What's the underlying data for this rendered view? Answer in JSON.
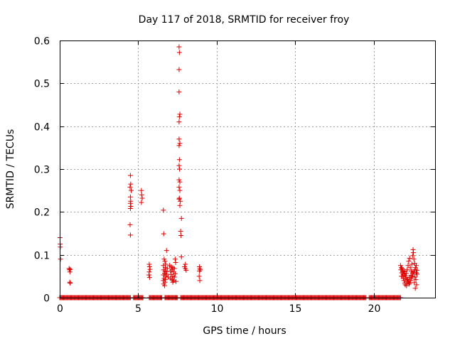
{
  "chart_data": {
    "type": "scatter",
    "title": "Day 117 of 2018, SRMTID for receiver froy",
    "xlabel": "GPS time / hours",
    "ylabel": "SRMTID / TECUs",
    "xlim": [
      0,
      23.9
    ],
    "ylim": [
      0,
      0.6
    ],
    "x_ticks": [
      0,
      5,
      10,
      15,
      20
    ],
    "x_tick_labels": [
      "0",
      "5",
      "10",
      "15",
      "20"
    ],
    "y_ticks": [
      0,
      0.1,
      0.2,
      0.3,
      0.4,
      0.5,
      0.6
    ],
    "y_tick_labels": [
      "0",
      "0.1",
      "0.2",
      "0.3",
      "0.4",
      "0.5",
      "0.6"
    ],
    "grid": true,
    "marker": "+",
    "series": [
      {
        "name": "SRMTID",
        "color": "#dd0000",
        "baseline": {
          "y": 0.0,
          "ranges": [
            [
              0.0,
              4.5
            ],
            [
              4.7,
              5.3
            ],
            [
              5.7,
              6.5
            ],
            [
              6.7,
              7.5
            ],
            [
              7.7,
              19.5
            ],
            [
              19.7,
              21.7
            ]
          ],
          "step": 0.05
        },
        "points": [
          [
            0.02,
            0.14
          ],
          [
            0.03,
            0.125
          ],
          [
            0.04,
            0.118
          ],
          [
            0.05,
            0.09
          ],
          [
            0.6,
            0.068
          ],
          [
            0.62,
            0.065
          ],
          [
            0.65,
            0.06
          ],
          [
            0.68,
            0.066
          ],
          [
            0.64,
            0.036
          ],
          [
            0.67,
            0.034
          ],
          [
            4.5,
            0.285
          ],
          [
            4.52,
            0.265
          ],
          [
            4.48,
            0.258
          ],
          [
            4.55,
            0.25
          ],
          [
            4.5,
            0.235
          ],
          [
            4.52,
            0.225
          ],
          [
            4.5,
            0.22
          ],
          [
            4.53,
            0.213
          ],
          [
            4.5,
            0.208
          ],
          [
            4.48,
            0.17
          ],
          [
            4.5,
            0.146
          ],
          [
            5.2,
            0.25
          ],
          [
            5.22,
            0.24
          ],
          [
            5.25,
            0.232
          ],
          [
            5.2,
            0.222
          ],
          [
            5.7,
            0.078
          ],
          [
            5.72,
            0.072
          ],
          [
            5.75,
            0.066
          ],
          [
            5.7,
            0.06
          ],
          [
            5.68,
            0.053
          ],
          [
            5.72,
            0.047
          ],
          [
            6.6,
            0.204
          ],
          [
            6.62,
            0.149
          ],
          [
            6.8,
            0.11
          ],
          [
            6.65,
            0.09
          ],
          [
            6.7,
            0.085
          ],
          [
            6.75,
            0.078
          ],
          [
            6.6,
            0.075
          ],
          [
            6.72,
            0.07
          ],
          [
            6.85,
            0.068
          ],
          [
            6.62,
            0.065
          ],
          [
            6.7,
            0.062
          ],
          [
            6.78,
            0.06
          ],
          [
            6.68,
            0.057
          ],
          [
            6.8,
            0.055
          ],
          [
            6.6,
            0.053
          ],
          [
            6.75,
            0.05
          ],
          [
            6.9,
            0.048
          ],
          [
            6.65,
            0.045
          ],
          [
            6.72,
            0.042
          ],
          [
            6.6,
            0.04
          ],
          [
            6.7,
            0.036
          ],
          [
            6.62,
            0.032
          ],
          [
            6.68,
            0.028
          ],
          [
            7.0,
            0.075
          ],
          [
            7.1,
            0.072
          ],
          [
            7.2,
            0.07
          ],
          [
            7.3,
            0.068
          ],
          [
            7.15,
            0.065
          ],
          [
            7.05,
            0.062
          ],
          [
            7.25,
            0.06
          ],
          [
            7.35,
            0.056
          ],
          [
            7.1,
            0.054
          ],
          [
            7.2,
            0.05
          ],
          [
            7.3,
            0.048
          ],
          [
            7.05,
            0.045
          ],
          [
            7.15,
            0.042
          ],
          [
            7.25,
            0.04
          ],
          [
            7.4,
            0.038
          ],
          [
            7.35,
            0.09
          ],
          [
            7.38,
            0.082
          ],
          [
            7.2,
            0.036
          ],
          [
            7.6,
            0.585
          ],
          [
            7.62,
            0.572
          ],
          [
            7.6,
            0.532
          ],
          [
            7.6,
            0.48
          ],
          [
            7.65,
            0.428
          ],
          [
            7.62,
            0.422
          ],
          [
            7.6,
            0.41
          ],
          [
            7.6,
            0.37
          ],
          [
            7.65,
            0.36
          ],
          [
            7.6,
            0.355
          ],
          [
            7.62,
            0.322
          ],
          [
            7.6,
            0.308
          ],
          [
            7.63,
            0.3
          ],
          [
            7.6,
            0.275
          ],
          [
            7.65,
            0.27
          ],
          [
            7.6,
            0.258
          ],
          [
            7.65,
            0.25
          ],
          [
            7.62,
            0.232
          ],
          [
            7.6,
            0.23
          ],
          [
            7.68,
            0.225
          ],
          [
            7.65,
            0.215
          ],
          [
            7.75,
            0.185
          ],
          [
            7.7,
            0.155
          ],
          [
            7.72,
            0.145
          ],
          [
            7.75,
            0.095
          ],
          [
            8.0,
            0.078
          ],
          [
            7.95,
            0.072
          ],
          [
            8.0,
            0.068
          ],
          [
            8.05,
            0.064
          ],
          [
            8.9,
            0.072
          ],
          [
            8.92,
            0.068
          ],
          [
            8.95,
            0.065
          ],
          [
            8.9,
            0.062
          ],
          [
            8.88,
            0.05
          ],
          [
            8.92,
            0.04
          ],
          [
            21.7,
            0.075
          ],
          [
            21.75,
            0.07
          ],
          [
            21.8,
            0.068
          ],
          [
            21.72,
            0.065
          ],
          [
            21.85,
            0.062
          ],
          [
            21.9,
            0.06
          ],
          [
            21.78,
            0.058
          ],
          [
            21.95,
            0.055
          ],
          [
            22.0,
            0.052
          ],
          [
            21.82,
            0.05
          ],
          [
            22.05,
            0.048
          ],
          [
            21.88,
            0.045
          ],
          [
            22.1,
            0.043
          ],
          [
            21.92,
            0.04
          ],
          [
            22.15,
            0.038
          ],
          [
            22.2,
            0.036
          ],
          [
            21.98,
            0.034
          ],
          [
            22.25,
            0.032
          ],
          [
            22.3,
            0.035
          ],
          [
            22.0,
            0.03
          ],
          [
            22.35,
            0.04
          ],
          [
            22.4,
            0.045
          ],
          [
            22.08,
            0.028
          ],
          [
            22.45,
            0.05
          ],
          [
            22.5,
            0.055
          ],
          [
            22.12,
            0.065
          ],
          [
            22.55,
            0.06
          ],
          [
            22.6,
            0.065
          ],
          [
            22.18,
            0.075
          ],
          [
            22.65,
            0.07
          ],
          [
            22.7,
            0.058
          ],
          [
            22.22,
            0.085
          ],
          [
            22.75,
            0.055
          ],
          [
            22.28,
            0.092
          ],
          [
            22.5,
            0.112
          ],
          [
            22.52,
            0.105
          ],
          [
            22.48,
            0.098
          ],
          [
            22.55,
            0.09
          ],
          [
            22.6,
            0.08
          ],
          [
            22.42,
            0.078
          ],
          [
            22.7,
            0.075
          ],
          [
            22.32,
            0.07
          ],
          [
            22.38,
            0.062
          ],
          [
            22.62,
            0.048
          ],
          [
            22.68,
            0.042
          ],
          [
            22.58,
            0.035
          ],
          [
            22.72,
            0.03
          ],
          [
            22.64,
            0.022
          ],
          [
            22.75,
            0.064
          ],
          [
            22.46,
            0.058
          ],
          [
            22.36,
            0.052
          ],
          [
            22.26,
            0.047
          ],
          [
            22.16,
            0.042
          ],
          [
            22.06,
            0.057
          ],
          [
            21.96,
            0.062
          ],
          [
            21.86,
            0.055
          ],
          [
            21.76,
            0.05
          ]
        ]
      }
    ]
  }
}
